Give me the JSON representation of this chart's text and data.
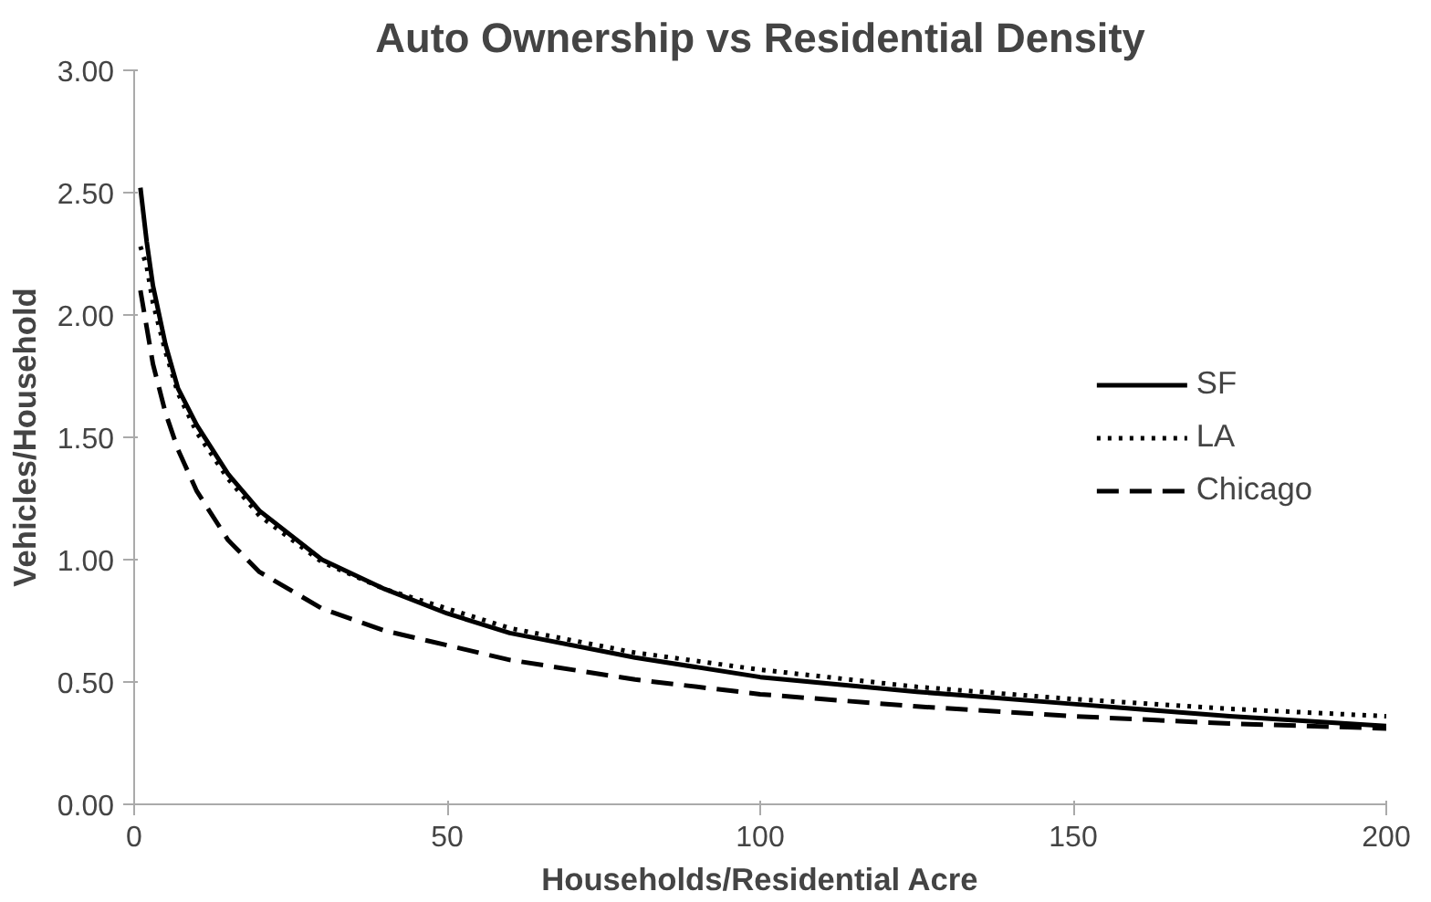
{
  "chart_data": {
    "type": "line",
    "title": "Auto Ownership vs Residential Density",
    "xlabel": "Households/Residential Acre",
    "ylabel": "Vehicles/Household",
    "x": [
      1,
      2,
      3,
      5,
      7,
      10,
      15,
      20,
      30,
      40,
      50,
      60,
      80,
      100,
      125,
      150,
      175,
      200
    ],
    "series": [
      {
        "name": "SF",
        "color": "#000000",
        "line_style": "solid",
        "values": [
          2.52,
          2.3,
          2.12,
          1.88,
          1.7,
          1.55,
          1.35,
          1.2,
          1.0,
          0.88,
          0.78,
          0.7,
          0.6,
          0.52,
          0.46,
          0.41,
          0.36,
          0.32
        ]
      },
      {
        "name": "LA",
        "color": "#000000",
        "line_style": "dotted",
        "values": [
          2.28,
          2.2,
          2.05,
          1.85,
          1.68,
          1.52,
          1.33,
          1.18,
          0.99,
          0.88,
          0.8,
          0.72,
          0.62,
          0.55,
          0.48,
          0.43,
          0.39,
          0.36
        ]
      },
      {
        "name": "Chicago",
        "color": "#000000",
        "line_style": "dashed",
        "values": [
          2.1,
          1.95,
          1.8,
          1.6,
          1.45,
          1.28,
          1.08,
          0.95,
          0.8,
          0.71,
          0.65,
          0.59,
          0.51,
          0.45,
          0.4,
          0.36,
          0.33,
          0.31
        ]
      }
    ],
    "xlim": [
      0,
      200
    ],
    "xticks": [
      0,
      50,
      100,
      150,
      200
    ],
    "ylim": [
      0,
      3
    ],
    "yticks": [
      {
        "value": 0,
        "label": "0.00"
      },
      {
        "value": 0.5,
        "label": "0.50"
      },
      {
        "value": 1,
        "label": "1.00"
      },
      {
        "value": 1.5,
        "label": "1.50"
      },
      {
        "value": 2,
        "label": "2.00"
      },
      {
        "value": 2.5,
        "label": "2.50"
      },
      {
        "value": 3,
        "label": "3.00"
      }
    ],
    "grid": false,
    "legend": "right",
    "marker": "none"
  }
}
